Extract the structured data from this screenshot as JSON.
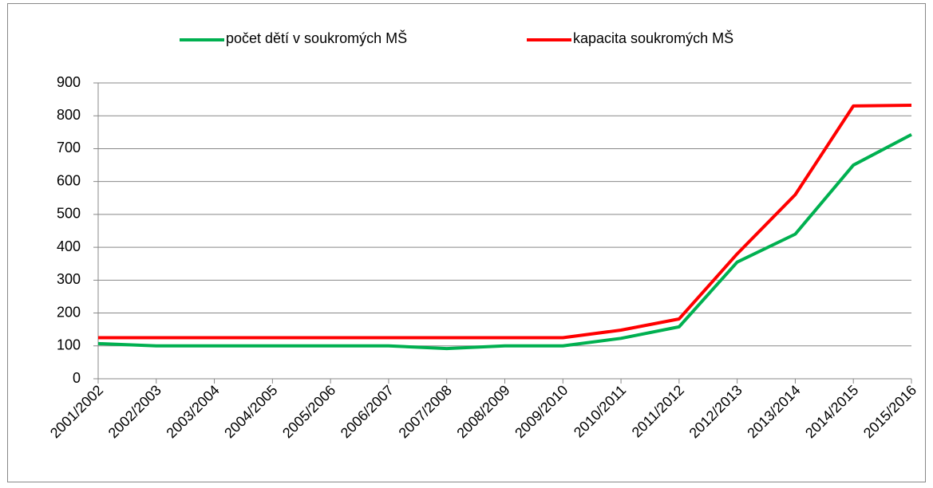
{
  "chart_data": {
    "type": "line",
    "categories": [
      "2001/2002",
      "2002/2003",
      "2003/2004",
      "2004/2005",
      "2005/2006",
      "2006/2007",
      "2007/2008",
      "2008/2009",
      "2009/2010",
      "2010/2011",
      "2011/2012",
      "2012/2013",
      "2013/2014",
      "2014/2015",
      "2015/2016"
    ],
    "series": [
      {
        "name": "počet dětí v soukromých MŠ",
        "color": "#00b050",
        "values": [
          107,
          100,
          100,
          100,
          100,
          100,
          92,
          100,
          100,
          123,
          158,
          355,
          440,
          650,
          743
        ]
      },
      {
        "name": "kapacita soukromých MŠ",
        "color": "#ff0000",
        "values": [
          125,
          125,
          125,
          125,
          125,
          125,
          125,
          125,
          125,
          148,
          182,
          380,
          560,
          830,
          832
        ]
      }
    ],
    "ylim": [
      0,
      900
    ],
    "yticks": [
      0,
      100,
      200,
      300,
      400,
      500,
      600,
      700,
      800,
      900
    ],
    "grid": true,
    "legend": "top"
  }
}
